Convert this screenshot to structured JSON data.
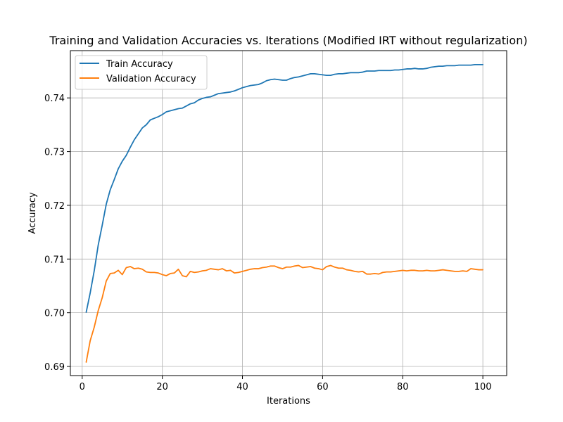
{
  "chart_data": {
    "type": "line",
    "title": "Training and Validation Accuracies vs. Iterations (Modified IRT without regularization)",
    "xlabel": "Iterations",
    "ylabel": "Accuracy",
    "xlim": [
      -2.95,
      105.95
    ],
    "ylim": [
      0.6883,
      0.7488
    ],
    "xticks": [
      0,
      20,
      40,
      60,
      80,
      100
    ],
    "yticks": [
      0.69,
      0.7,
      0.71,
      0.72,
      0.73,
      0.74
    ],
    "ytick_labels": [
      "0.69",
      "0.70",
      "0.71",
      "0.72",
      "0.73",
      "0.74"
    ],
    "grid": true,
    "legend": "upper-left",
    "x": [
      1,
      2,
      3,
      4,
      5,
      6,
      7,
      8,
      9,
      10,
      11,
      12,
      13,
      14,
      15,
      16,
      17,
      18,
      19,
      20,
      21,
      22,
      23,
      24,
      25,
      26,
      27,
      28,
      29,
      30,
      31,
      32,
      33,
      34,
      35,
      36,
      37,
      38,
      39,
      40,
      41,
      42,
      43,
      44,
      45,
      46,
      47,
      48,
      49,
      50,
      51,
      52,
      53,
      54,
      55,
      56,
      57,
      58,
      59,
      60,
      61,
      62,
      63,
      64,
      65,
      66,
      67,
      68,
      69,
      70,
      71,
      72,
      73,
      74,
      75,
      76,
      77,
      78,
      79,
      80,
      81,
      82,
      83,
      84,
      85,
      86,
      87,
      88,
      89,
      90,
      91,
      92,
      93,
      94,
      95,
      96,
      97,
      98,
      99,
      100
    ],
    "series": [
      {
        "name": "Train Accuracy",
        "color": "#1f77b4",
        "values": [
          0.7001,
          0.7037,
          0.7078,
          0.7126,
          0.7163,
          0.7202,
          0.7229,
          0.7248,
          0.7268,
          0.7282,
          0.7293,
          0.7308,
          0.7322,
          0.7333,
          0.7344,
          0.735,
          0.7359,
          0.7362,
          0.7365,
          0.7369,
          0.7374,
          0.7376,
          0.7378,
          0.738,
          0.7381,
          0.7385,
          0.7389,
          0.7391,
          0.7396,
          0.7399,
          0.7401,
          0.7402,
          0.7405,
          0.7408,
          0.7409,
          0.741,
          0.7411,
          0.7413,
          0.7416,
          0.7419,
          0.7421,
          0.7423,
          0.7424,
          0.7425,
          0.7428,
          0.7432,
          0.7434,
          0.7435,
          0.7434,
          0.7433,
          0.7433,
          0.7436,
          0.7438,
          0.7439,
          0.7441,
          0.7443,
          0.7445,
          0.7445,
          0.7444,
          0.7443,
          0.7442,
          0.7442,
          0.7444,
          0.7445,
          0.7445,
          0.7446,
          0.7447,
          0.7447,
          0.7447,
          0.7448,
          0.745,
          0.745,
          0.745,
          0.7451,
          0.7451,
          0.7451,
          0.7451,
          0.7452,
          0.7452,
          0.7453,
          0.7454,
          0.7454,
          0.7455,
          0.7454,
          0.7454,
          0.7455,
          0.7457,
          0.7458,
          0.7459,
          0.7459,
          0.746,
          0.746,
          0.746,
          0.7461,
          0.7461,
          0.7461,
          0.7461,
          0.7462,
          0.7462,
          0.7462
        ]
      },
      {
        "name": "Validation Accuracy",
        "color": "#ff7f0e",
        "values": [
          0.6908,
          0.6948,
          0.6973,
          0.7004,
          0.7028,
          0.7059,
          0.7073,
          0.7074,
          0.7079,
          0.7071,
          0.7084,
          0.7086,
          0.7082,
          0.7083,
          0.7081,
          0.7076,
          0.7075,
          0.7075,
          0.7074,
          0.7071,
          0.7069,
          0.7073,
          0.7074,
          0.7081,
          0.7069,
          0.7067,
          0.7077,
          0.7075,
          0.7076,
          0.7078,
          0.7079,
          0.7082,
          0.7081,
          0.708,
          0.7082,
          0.7078,
          0.7079,
          0.7074,
          0.7075,
          0.7077,
          0.7079,
          0.7081,
          0.7082,
          0.7082,
          0.7084,
          0.7085,
          0.7087,
          0.7087,
          0.7084,
          0.7082,
          0.7085,
          0.7085,
          0.7087,
          0.7088,
          0.7084,
          0.7085,
          0.7086,
          0.7083,
          0.7082,
          0.708,
          0.7086,
          0.7088,
          0.7085,
          0.7083,
          0.7083,
          0.708,
          0.7079,
          0.7077,
          0.7076,
          0.7077,
          0.7072,
          0.7072,
          0.7073,
          0.7072,
          0.7075,
          0.7076,
          0.7076,
          0.7077,
          0.7078,
          0.7079,
          0.7078,
          0.7079,
          0.7079,
          0.7078,
          0.7078,
          0.7079,
          0.7078,
          0.7078,
          0.7079,
          0.708,
          0.7079,
          0.7078,
          0.7077,
          0.7077,
          0.7078,
          0.7077,
          0.7082,
          0.7081,
          0.708,
          0.708
        ]
      }
    ]
  }
}
